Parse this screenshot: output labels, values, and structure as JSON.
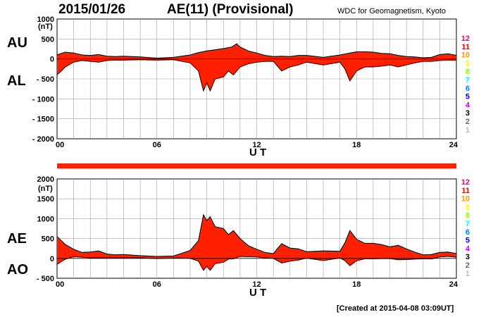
{
  "header": {
    "date": "2015/01/26",
    "title": "AE(11) (Provisional)",
    "source": "WDC for Geomagnetism, Kyoto"
  },
  "footer": {
    "created": "[Created at 2015-04-08 03:09UT]"
  },
  "legend": {
    "stations": [
      "12",
      "11",
      "10",
      "9",
      "8",
      "7",
      "6",
      "5",
      "4",
      "3",
      "2",
      "1"
    ],
    "colors": [
      "#ff0080",
      "#ff0000",
      "#ff9900",
      "#ffff00",
      "#99ff00",
      "#00ffff",
      "#0080ff",
      "#0000ff",
      "#cc00ff",
      "#000000",
      "#666666",
      "#bbbbbb"
    ]
  },
  "colors": {
    "fill": "#ff2000",
    "edge": "#000000",
    "grid": "#a0a0a0",
    "stations_bar": "#ff2000"
  },
  "chart_data": [
    {
      "type": "area",
      "panel": "AU/AL",
      "ylabel_top": "AU",
      "ylabel_bottom": "AL",
      "unit": "(nT)",
      "xlabel": "U T",
      "xlim": [
        0,
        24
      ],
      "ylim": [
        -2000,
        1000
      ],
      "yticks": [
        "1000",
        "500",
        "0",
        "- 500",
        "- 1000",
        "- 1500",
        "- 2000"
      ],
      "ytick_values": [
        1000,
        500,
        0,
        -500,
        -1000,
        -1500,
        -2000
      ],
      "xticks": [
        "00",
        "06",
        "12",
        "18",
        "24"
      ],
      "xtick_values": [
        0,
        6,
        12,
        18,
        24
      ],
      "series": [
        {
          "label": "AU",
          "x": [
            0,
            0.25,
            0.5,
            1,
            1.5,
            2,
            2.5,
            3,
            3.5,
            4,
            5,
            6,
            7,
            8,
            8.5,
            9,
            9.5,
            10,
            10.5,
            10.8,
            11,
            11.5,
            12,
            12.5,
            13,
            13.5,
            14,
            14.5,
            15,
            16,
            17,
            17.5,
            18,
            18.5,
            19,
            19.5,
            20,
            20.5,
            21,
            21.5,
            22,
            22.5,
            23,
            23.5,
            24
          ],
          "values": [
            100,
            140,
            170,
            150,
            100,
            90,
            110,
            70,
            60,
            70,
            50,
            20,
            40,
            100,
            160,
            200,
            230,
            260,
            300,
            380,
            300,
            200,
            150,
            90,
            60,
            70,
            60,
            90,
            90,
            40,
            100,
            140,
            180,
            180,
            170,
            140,
            130,
            90,
            60,
            50,
            30,
            40,
            110,
            130,
            90
          ]
        },
        {
          "label": "AL",
          "x": [
            0,
            0.25,
            0.5,
            1,
            1.5,
            2,
            2.5,
            3,
            3.5,
            4,
            5,
            6,
            7,
            8,
            8.5,
            8.8,
            9,
            9.2,
            9.5,
            10,
            10.3,
            10.6,
            11,
            11.5,
            12,
            12.5,
            13,
            13.5,
            14,
            14.5,
            15,
            16,
            17,
            17.3,
            17.6,
            18,
            18.5,
            19,
            19.5,
            20,
            20.5,
            21,
            21.5,
            22,
            22.5,
            23,
            23.5,
            24
          ],
          "values": [
            -400,
            -300,
            -200,
            -80,
            -40,
            -60,
            -80,
            -40,
            -30,
            -30,
            -20,
            -30,
            -20,
            -100,
            -300,
            -800,
            -600,
            -800,
            -500,
            -450,
            -300,
            -400,
            -200,
            -120,
            -80,
            -60,
            -60,
            -300,
            -200,
            -150,
            -80,
            -150,
            -80,
            -250,
            -550,
            -300,
            -200,
            -200,
            -180,
            -150,
            -200,
            -150,
            -100,
            -60,
            -60,
            -40,
            -30,
            -30
          ]
        }
      ]
    },
    {
      "type": "area",
      "panel": "AE/AO",
      "ylabel_top": "AE",
      "ylabel_bottom": "AO",
      "unit": "(nT)",
      "xlabel": "U T",
      "xlim": [
        0,
        24
      ],
      "ylim": [
        -500,
        2000
      ],
      "yticks": [
        "2000",
        "1500",
        "1000",
        "500",
        "0",
        "- 500"
      ],
      "ytick_values": [
        2000,
        1500,
        1000,
        500,
        0,
        -500
      ],
      "xticks": [
        "00",
        "06",
        "12",
        "18",
        "24"
      ],
      "xtick_values": [
        0,
        6,
        12,
        18,
        24
      ],
      "series": [
        {
          "label": "AE",
          "x": [
            0,
            0.25,
            0.5,
            1,
            1.5,
            2,
            2.5,
            3,
            3.5,
            4,
            5,
            6,
            7,
            8,
            8.5,
            8.8,
            9,
            9.2,
            9.5,
            10,
            10.3,
            10.6,
            11,
            11.5,
            12,
            12.5,
            13,
            13.5,
            14,
            14.5,
            15,
            16,
            17,
            17.3,
            17.6,
            18,
            18.5,
            19,
            19.5,
            20,
            20.5,
            21,
            21.5,
            22,
            22.5,
            23,
            23.5,
            24
          ],
          "values": [
            550,
            450,
            350,
            230,
            150,
            160,
            190,
            110,
            90,
            100,
            70,
            50,
            60,
            200,
            450,
            1100,
            950,
            1050,
            800,
            750,
            600,
            700,
            500,
            320,
            230,
            150,
            120,
            370,
            260,
            240,
            170,
            190,
            180,
            390,
            700,
            480,
            380,
            380,
            350,
            290,
            330,
            240,
            160,
            90,
            100,
            150,
            160,
            120
          ]
        },
        {
          "label": "AO",
          "x": [
            0,
            0.25,
            0.5,
            1,
            1.5,
            2,
            2.5,
            3,
            3.5,
            4,
            5,
            6,
            7,
            8,
            8.5,
            8.8,
            9,
            9.2,
            9.5,
            10,
            10.3,
            10.6,
            11,
            11.5,
            12,
            12.5,
            13,
            13.5,
            14,
            14.5,
            15,
            16,
            17,
            17.3,
            17.6,
            18,
            18.5,
            19,
            19.5,
            20,
            20.5,
            21,
            21.5,
            22,
            22.5,
            23,
            23.5,
            24
          ],
          "values": [
            -150,
            -80,
            -20,
            40,
            30,
            15,
            15,
            15,
            15,
            20,
            15,
            -5,
            10,
            0,
            -70,
            -300,
            -200,
            -300,
            -135,
            -95,
            -20,
            -10,
            50,
            40,
            35,
            15,
            0,
            -115,
            -70,
            -40,
            5,
            -55,
            10,
            -55,
            -185,
            -60,
            -10,
            -10,
            -5,
            -5,
            -35,
            -30,
            -20,
            -10,
            -15,
            35,
            50,
            30
          ]
        }
      ]
    }
  ]
}
